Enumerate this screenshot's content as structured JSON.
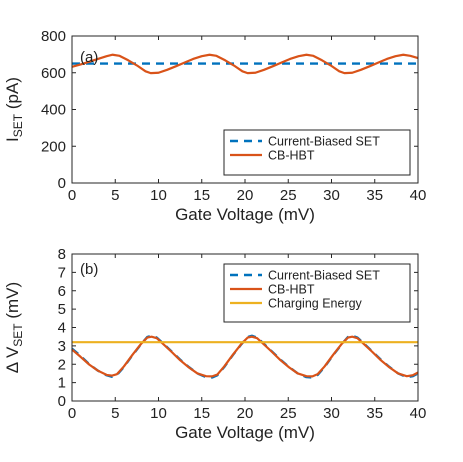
{
  "colors": {
    "current_biased": "#0072BD",
    "cb_hbt": "#D95319",
    "charging_energy": "#EDB120",
    "axes": "#262626",
    "text": "#222222"
  },
  "chart_data": [
    {
      "type": "line",
      "panel_label": "(a)",
      "xlabel": "Gate Voltage (mV)",
      "ylabel_main": "I",
      "ylabel_sub": "SET",
      "ylabel_unit": " (pA)",
      "xlim": [
        0,
        40
      ],
      "ylim": [
        0,
        800
      ],
      "xticks": [
        0,
        5,
        10,
        15,
        20,
        25,
        30,
        35,
        40
      ],
      "yticks": [
        0,
        200,
        400,
        600,
        800
      ],
      "legend_position": "bottom-right",
      "series": [
        {
          "name": "Current-Biased SET",
          "style": "dashed",
          "color": "#0072BD",
          "x": [
            0,
            40
          ],
          "y": [
            650,
            650
          ]
        },
        {
          "name": "CB-HBT",
          "style": "solid",
          "color": "#D95319",
          "x": [
            0,
            1,
            2,
            3,
            4,
            4.7,
            5.5,
            6.5,
            7.5,
            8.5,
            9.1,
            10,
            11,
            12,
            13,
            14,
            15,
            15.9,
            16.7,
            17.7,
            18.7,
            19.7,
            20.3,
            21.2,
            22.2,
            23.2,
            24.2,
            25.2,
            26.2,
            27.1,
            27.9,
            28.9,
            29.9,
            30.9,
            31.5,
            32.4,
            33.4,
            34.4,
            35.4,
            36.4,
            37.4,
            38.3,
            39.1,
            40
          ],
          "y": [
            632,
            645,
            660,
            675,
            690,
            698,
            692,
            668,
            640,
            608,
            598,
            600,
            616,
            635,
            655,
            675,
            690,
            698,
            692,
            668,
            640,
            608,
            598,
            600,
            616,
            635,
            655,
            675,
            690,
            698,
            692,
            668,
            640,
            608,
            598,
            600,
            616,
            635,
            655,
            675,
            690,
            698,
            692,
            680
          ]
        }
      ]
    },
    {
      "type": "line",
      "panel_label": "(b)",
      "xlabel": "Gate Voltage (mV)",
      "ylabel_main": "Δ V",
      "ylabel_sub": "SET",
      "ylabel_unit": " (mV)",
      "xlim": [
        0,
        40
      ],
      "ylim": [
        0,
        8
      ],
      "xticks": [
        0,
        5,
        10,
        15,
        20,
        25,
        30,
        35,
        40
      ],
      "yticks": [
        0,
        1,
        2,
        3,
        4,
        5,
        6,
        7,
        8
      ],
      "legend_position": "top-right",
      "series": [
        {
          "name": "Current-Biased SET",
          "style": "dashed",
          "color": "#0072BD",
          "x": [
            0,
            1,
            2,
            3,
            4,
            4.6,
            5.2,
            6,
            7,
            8,
            8.7,
            9.2,
            9.8,
            10.5,
            11.5,
            12.5,
            13.5,
            14.5,
            15.5,
            16.2,
            16.8,
            17.6,
            18.6,
            19.6,
            20.3,
            20.8,
            21.4,
            22.1,
            23.1,
            24.1,
            25.1,
            26.1,
            27.1,
            27.8,
            28.4,
            29.2,
            30.2,
            31.2,
            31.9,
            32.4,
            33,
            33.7,
            34.7,
            35.7,
            36.7,
            37.7,
            38.7,
            39.4,
            40
          ],
          "y": [
            2.85,
            2.45,
            2.0,
            1.65,
            1.4,
            1.32,
            1.42,
            1.85,
            2.5,
            3.1,
            3.48,
            3.55,
            3.45,
            3.15,
            2.7,
            2.25,
            1.85,
            1.5,
            1.3,
            1.28,
            1.4,
            1.85,
            2.5,
            3.1,
            3.48,
            3.55,
            3.45,
            3.15,
            2.7,
            2.25,
            1.85,
            1.5,
            1.3,
            1.28,
            1.42,
            1.85,
            2.5,
            3.1,
            3.48,
            3.55,
            3.45,
            3.15,
            2.7,
            2.25,
            1.85,
            1.5,
            1.3,
            1.35,
            1.5
          ]
        },
        {
          "name": "CB-HBT",
          "style": "solid",
          "color": "#D95319",
          "x": [
            0,
            1,
            2,
            3,
            4,
            4.6,
            5.2,
            6,
            7,
            8,
            8.7,
            9.2,
            9.8,
            10.5,
            11.5,
            12.5,
            13.5,
            14.5,
            15.5,
            16.2,
            16.8,
            17.6,
            18.6,
            19.6,
            20.3,
            20.8,
            21.4,
            22.1,
            23.1,
            24.1,
            25.1,
            26.1,
            27.1,
            27.8,
            28.4,
            29.2,
            30.2,
            31.2,
            31.9,
            32.4,
            33,
            33.7,
            34.7,
            35.7,
            36.7,
            37.7,
            38.7,
            39.4,
            40
          ],
          "y": [
            2.8,
            2.4,
            1.98,
            1.65,
            1.42,
            1.38,
            1.46,
            1.88,
            2.52,
            3.12,
            3.45,
            3.5,
            3.42,
            3.12,
            2.68,
            2.22,
            1.83,
            1.5,
            1.35,
            1.34,
            1.44,
            1.88,
            2.52,
            3.12,
            3.45,
            3.5,
            3.42,
            3.12,
            2.68,
            2.22,
            1.83,
            1.5,
            1.35,
            1.34,
            1.46,
            1.88,
            2.52,
            3.12,
            3.45,
            3.5,
            3.42,
            3.12,
            2.68,
            2.22,
            1.83,
            1.5,
            1.35,
            1.4,
            1.55
          ]
        },
        {
          "name": "Charging Energy",
          "style": "solid",
          "color": "#EDB120",
          "x": [
            0,
            40
          ],
          "y": [
            3.2,
            3.2
          ]
        }
      ]
    }
  ]
}
